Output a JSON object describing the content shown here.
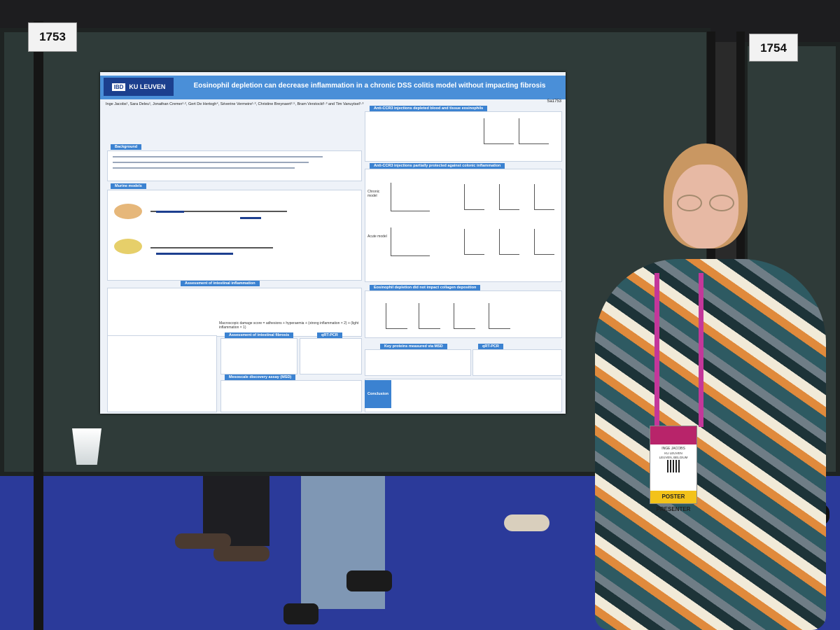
{
  "scene": {
    "left_board_number": "1753",
    "right_board_number": "1754"
  },
  "poster": {
    "logo_text": "KU LEUVEN",
    "logo_badge": "IBD",
    "title": "Eosinophil depletion can decrease inflammation in a chronic DSS colitis model without impacting fibrosis",
    "authors": "Inge Jacobs¹, Sara Deleu¹, Jonathan Cremer¹·², Gert De Hertogh⁴, Séverine Vermeire¹·³, Christine Breynaert²·⁵, Bram Verstockt¹·³ and Tim Vanuytsel¹·³",
    "poster_id": "Sa1753",
    "sections": {
      "background": "Background",
      "murine": "Murine models",
      "assessment": "Assessment of intestinal inflammation",
      "ccr3_blood": "Anti-CCR3 injections depleted blood and tissue eosinophils",
      "ccr3_protect": "Anti-CCR3 injections partially protected against colonic inflammation",
      "collagen": "Eosinophil depletion did not impact collagen deposition",
      "fibrosis": "Assessment of intestinal fibrosis",
      "qrtpcr": "qRT-PCR",
      "msd": "Key proteins measured via MSD",
      "qrtpcr2": "qRT-PCR",
      "mesoscale": "Mesoscale discovery assay (MSD)",
      "conclusion": "Conclusion"
    },
    "labels": {
      "chronic_model": "Chronic model",
      "acute_model": "Acute model",
      "macroscopic": "Macroscopic damage score = adhesions + hyperaemia + (strong inflammation × 2) + (light inflammation × 1)"
    }
  },
  "badge": {
    "name": "INGE JACOBS",
    "affiliation": "KU LEUVEN",
    "location": "LEUVEN, BELGIUM",
    "footer": "POSTER PRESENTER"
  }
}
